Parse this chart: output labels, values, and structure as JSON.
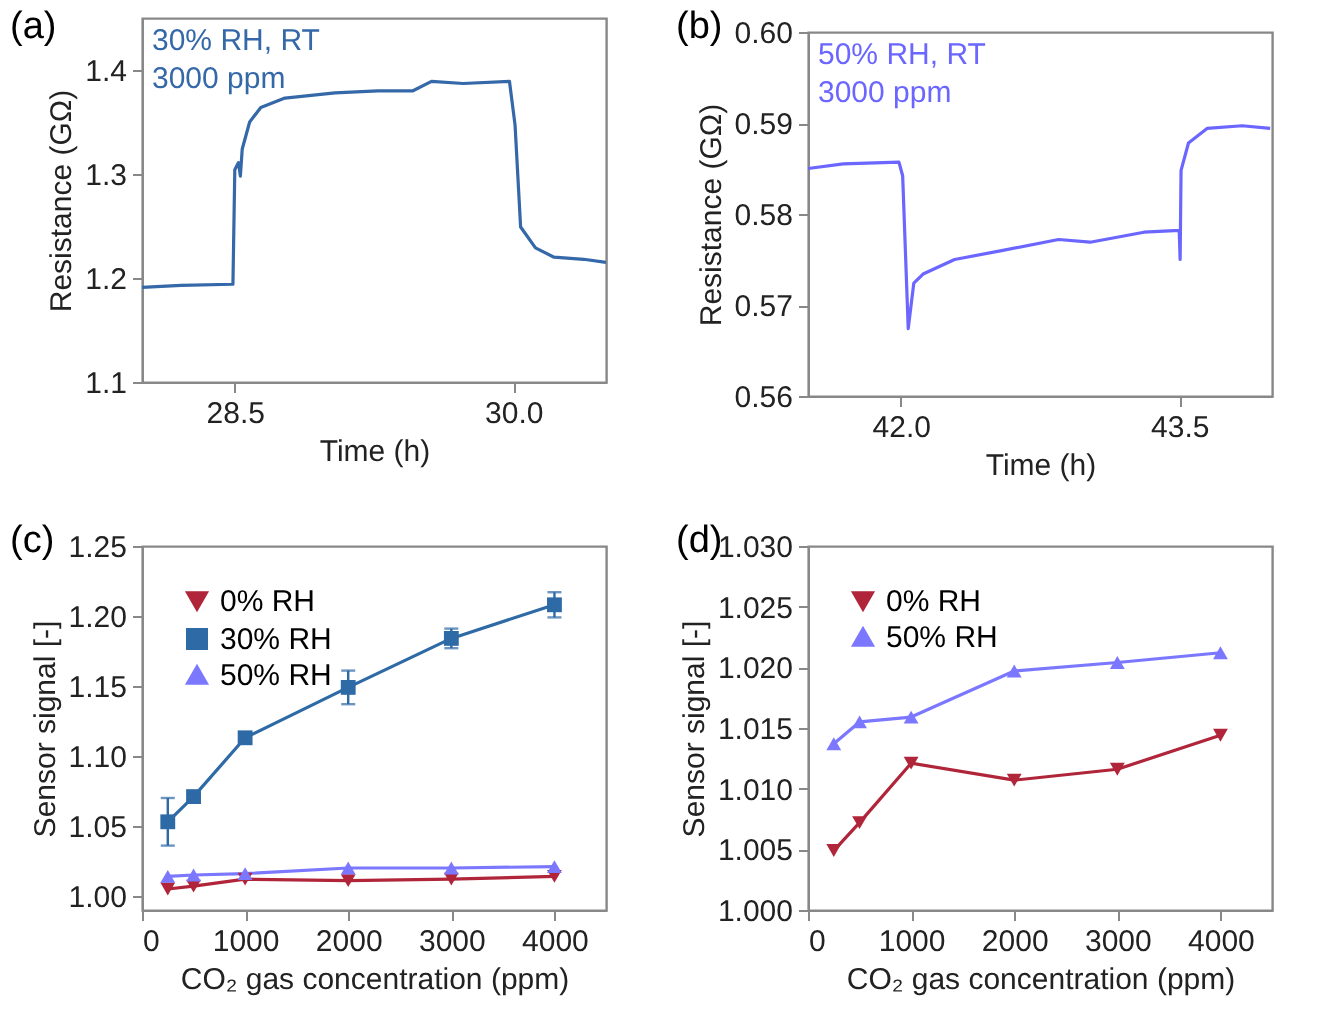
{
  "chart_data": [
    {
      "type": "line",
      "title": "(a)",
      "xlabel": "Time (h)",
      "ylabel": "Resistance (GΩ)",
      "annotations": [
        "30% RH, RT",
        "3000 ppm"
      ],
      "marker": "none",
      "grid": false,
      "x": [
        28.0,
        28.21,
        28.49,
        28.5,
        28.52,
        28.53,
        28.54,
        28.58,
        28.64,
        28.77,
        29.04,
        29.27,
        29.46,
        29.56,
        29.73,
        29.98,
        30.01,
        30.04,
        30.12,
        30.22,
        30.38,
        30.5
      ],
      "series": [
        {
          "color": "#3468a8",
          "values": [
            1.191,
            1.193,
            1.194,
            1.304,
            1.311,
            1.298,
            1.324,
            1.35,
            1.364,
            1.373,
            1.378,
            1.38,
            1.38,
            1.389,
            1.387,
            1.389,
            1.347,
            1.249,
            1.229,
            1.22,
            1.218,
            1.215
          ]
        }
      ],
      "xlim": [
        28,
        30.5
      ],
      "xticks": [
        28.5,
        {
          "value": 30,
          "label": "30.0"
        }
      ],
      "ylim": [
        1.1,
        1.45
      ],
      "yticks": [
        1.1,
        1.2,
        1.3,
        1.4
      ]
    },
    {
      "type": "line",
      "title": "(b)",
      "xlabel": "Time (h)",
      "ylabel": "Resistance (GΩ)",
      "annotations": [
        "50% RH, RT",
        "3000 ppm"
      ],
      "marker": "none",
      "grid": false,
      "x": [
        41.5,
        41.69,
        41.99,
        42.01,
        42.04,
        42.07,
        42.12,
        42.29,
        42.55,
        42.85,
        43.02,
        43.31,
        43.5,
        43.505,
        43.51,
        43.55,
        43.65,
        43.84,
        43.99
      ],
      "series": [
        {
          "color": "#6a66ff",
          "values": [
            0.585,
            0.5855,
            0.5857,
            0.5842,
            0.5674,
            0.5724,
            0.5734,
            0.575,
            0.576,
            0.5772,
            0.5769,
            0.578,
            0.5782,
            0.575,
            0.5848,
            0.5878,
            0.5894,
            0.5897,
            0.5894
          ]
        }
      ],
      "xlim": [
        41.5,
        44
      ],
      "xticks": [
        {
          "value": 42,
          "label": "42.0"
        },
        43.5
      ],
      "ylim": [
        0.56,
        0.6
      ],
      "yticks": [
        0.56,
        0.57,
        0.58,
        0.59,
        {
          "value": 0.6,
          "label": "0.60"
        }
      ]
    },
    {
      "type": "line",
      "title": "(c)",
      "xlabel": "CO₂ gas concentration (ppm)",
      "ylabel": "Sensor signal [-]",
      "grid": false,
      "legend": "top left",
      "x": [
        250,
        500,
        1000,
        2000,
        3000,
        4000
      ],
      "series": [
        {
          "name": "0% RH",
          "color": "#b0253a",
          "marker": "triangle-down",
          "values": [
            1.005,
            1.007,
            1.012,
            1.011,
            1.012,
            1.014
          ]
        },
        {
          "name": "30% RH",
          "color": "#2e6aa6",
          "marker": "square",
          "values": [
            1.053,
            1.071,
            1.113,
            1.149,
            1.184,
            1.208
          ],
          "errors": [
            0.017,
            0.002,
            0.004,
            0.012,
            0.007,
            0.009
          ]
        },
        {
          "name": "50% RH",
          "color": "#7b78ff",
          "marker": "triangle",
          "values": [
            1.014,
            1.015,
            1.016,
            1.02,
            1.02,
            1.021
          ]
        }
      ],
      "xlim": [
        0,
        4500
      ],
      "xticks": [
        0,
        1000,
        2000,
        3000,
        4000
      ],
      "ylim": [
        0.99,
        1.25
      ],
      "yticks": [
        {
          "value": 1,
          "label": "1.00"
        },
        1.05,
        {
          "value": 1.1,
          "label": "1.10"
        },
        1.15,
        {
          "value": 1.2,
          "label": "1.20"
        },
        1.25
      ]
    },
    {
      "type": "line",
      "title": "(d)",
      "xlabel": "CO₂ gas concentration (ppm)",
      "ylabel": "Sensor signal [-]",
      "grid": false,
      "legend": "top left",
      "x": [
        250,
        500,
        1000,
        2000,
        3000,
        4000
      ],
      "series": [
        {
          "name": "0% RH",
          "color": "#b0253a",
          "marker": "triangle-down",
          "values": [
            1.0049,
            1.0072,
            1.0121,
            1.0107,
            1.0116,
            1.0144
          ]
        },
        {
          "name": "50% RH",
          "color": "#7b78ff",
          "marker": "triangle",
          "values": [
            1.0137,
            1.0155,
            1.0159,
            1.0197,
            1.0204,
            1.0212
          ]
        }
      ],
      "xlim": [
        0,
        4500
      ],
      "xticks": [
        0,
        1000,
        2000,
        3000,
        4000
      ],
      "ylim": [
        1.0,
        1.03
      ],
      "yticks": [
        {
          "value": 1,
          "label": "1.000"
        },
        1.005,
        {
          "value": 1.01,
          "label": "1.010"
        },
        1.015,
        {
          "value": 1.02,
          "label": "1.020"
        },
        1.025,
        {
          "value": 1.03,
          "label": "1.030"
        }
      ]
    }
  ]
}
